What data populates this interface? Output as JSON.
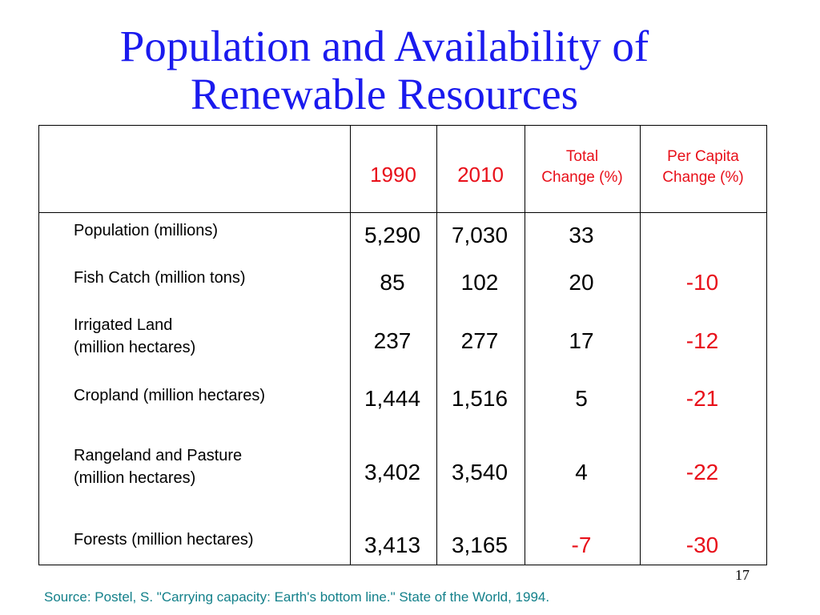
{
  "title": {
    "line1": "Population and Availability of",
    "line2": "Renewable Resources"
  },
  "columns": {
    "y1990": "1990",
    "y2010": "2010",
    "total_change_line1": "Total",
    "total_change_line2": "Change (%)",
    "per_capita_line1": "Per Capita",
    "per_capita_line2": "Change (%)"
  },
  "rows": [
    {
      "label1": "Population (millions)",
      "label2": "",
      "v1990": "5,290",
      "v2010": "7,030",
      "total": "33",
      "per_capita": ""
    },
    {
      "label1": "Fish Catch (million tons)",
      "label2": "",
      "v1990": "85",
      "v2010": "102",
      "total": "20",
      "per_capita": "-10"
    },
    {
      "label1": "Irrigated Land",
      "label2": "(million hectares)",
      "v1990": "237",
      "v2010": "277",
      "total": "17",
      "per_capita": "-12"
    },
    {
      "label1": "Cropland (million hectares)",
      "label2": "",
      "v1990": "1,444",
      "v2010": "1,516",
      "total": "5",
      "per_capita": "-21"
    },
    {
      "label1": "Rangeland and Pasture",
      "label2": "(million hectares)",
      "v1990": "3,402",
      "v2010": "3,540",
      "total": "4",
      "per_capita": "-22"
    },
    {
      "label1": "Forests (million hectares)",
      "label2": "",
      "v1990": "3,413",
      "v2010": "3,165",
      "total": "-7",
      "per_capita": "-30"
    }
  ],
  "page_number": "17",
  "source": "Source: Postel, S. \"Carrying capacity: Earth's bottom line.\"  State of the World, 1994.",
  "colors": {
    "title": "#1a1aee",
    "header": "#e8101a",
    "negative": "#e8101a",
    "source": "#13808a"
  }
}
